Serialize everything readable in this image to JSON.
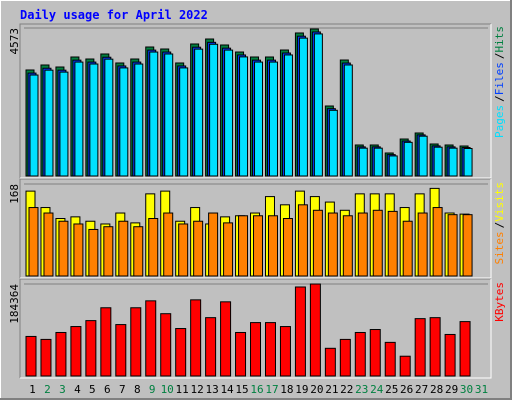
{
  "chart_data": [
    {
      "type": "bar",
      "title": "Daily usage for April 2022",
      "ylim": [
        0,
        4573
      ],
      "yticks": [
        4573
      ],
      "legend_separator": "/",
      "series": [
        {
          "name": "Hits",
          "color": "#008040",
          "values": [
            3276,
            3430,
            3368,
            3677,
            3615,
            3770,
            3492,
            3615,
            3986,
            3924,
            3492,
            4079,
            4233,
            4048,
            3831,
            3677,
            3677,
            3893,
            4419,
            4542,
            2163,
            3584,
            958,
            958,
            711,
            1143,
            1329,
            989,
            958,
            927,
            null
          ]
        },
        {
          "name": "Files",
          "color": "#0040ff",
          "values": [
            3180,
            3330,
            3270,
            3580,
            3520,
            3670,
            3400,
            3520,
            3890,
            3830,
            3400,
            3980,
            4130,
            3950,
            3740,
            3580,
            3580,
            3800,
            4320,
            4450,
            2080,
            3490,
            900,
            900,
            660,
            1080,
            1270,
            930,
            900,
            880,
            null
          ]
        },
        {
          "name": "Pages",
          "color": "#00e0ff",
          "values": [
            3120,
            3270,
            3210,
            3520,
            3460,
            3610,
            3340,
            3460,
            3830,
            3770,
            3340,
            3920,
            4070,
            3890,
            3680,
            3520,
            3520,
            3740,
            4260,
            4390,
            2030,
            3430,
            860,
            860,
            620,
            1040,
            1230,
            890,
            860,
            850,
            null
          ]
        }
      ]
    },
    {
      "type": "bar",
      "ylim": [
        0,
        168
      ],
      "yticks": [
        168
      ],
      "legend_separator": "/",
      "series": [
        {
          "name": "Visits",
          "color": "#ffff00",
          "values": [
            155,
            125,
            105,
            108,
            100,
            95,
            115,
            97,
            150,
            155,
            100,
            125,
            95,
            108,
            110,
            115,
            145,
            130,
            155,
            145,
            135,
            120,
            150,
            150,
            150,
            125,
            150,
            160,
            115,
            113,
            null
          ]
        },
        {
          "name": "Sites",
          "color": "#ff8000",
          "values": [
            125,
            115,
            100,
            95,
            85,
            90,
            100,
            90,
            105,
            115,
            95,
            100,
            115,
            97,
            110,
            110,
            110,
            105,
            130,
            120,
            115,
            110,
            115,
            120,
            118,
            100,
            115,
            125,
            112,
            112,
            null
          ]
        }
      ]
    },
    {
      "type": "bar",
      "ylim": [
        0,
        184364
      ],
      "yticks": [
        184364
      ],
      "categories": [
        "1",
        "2",
        "3",
        "4",
        "5",
        "6",
        "7",
        "8",
        "9",
        "10",
        "11",
        "12",
        "13",
        "14",
        "15",
        "16",
        "17",
        "18",
        "19",
        "20",
        "21",
        "22",
        "23",
        "24",
        "25",
        "26",
        "27",
        "28",
        "29",
        "30",
        "31"
      ],
      "category_colors": [
        "#000000",
        "#008040",
        "#008040",
        "#000000",
        "#000000",
        "#000000",
        "#000000",
        "#000000",
        "#008040",
        "#008040",
        "#000000",
        "#000000",
        "#000000",
        "#000000",
        "#000000",
        "#008040",
        "#008040",
        "#000000",
        "#000000",
        "#000000",
        "#000000",
        "#000000",
        "#008040",
        "#008040",
        "#000000",
        "#000000",
        "#000000",
        "#000000",
        "#000000",
        "#008040",
        "#008040"
      ],
      "series": [
        {
          "name": "KBytes",
          "color": "#ff0000",
          "values": [
            79280,
            73330,
            87210,
            99100,
            110990,
            136760,
            103060,
            136760,
            150630,
            124870,
            95140,
            152610,
            116940,
            148650,
            87210,
            107030,
            107030,
            99100,
            178380,
            184330,
            55500,
            73330,
            87210,
            93150,
            67390,
            39640,
            114960,
            116940,
            83240,
            109010,
            null
          ]
        }
      ]
    }
  ]
}
